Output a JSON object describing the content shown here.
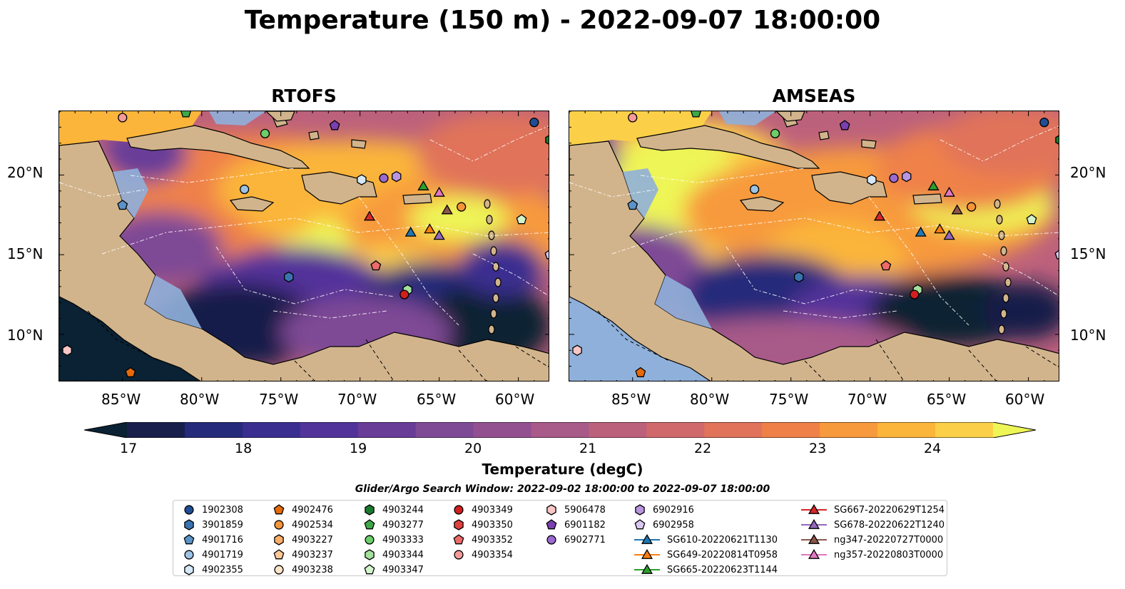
{
  "title": "Temperature (150 m) - 2022-09-07 18:00:00",
  "panels": [
    {
      "title": "RTOFS"
    },
    {
      "title": "AMSEAS"
    }
  ],
  "axes": {
    "lat_ticks": [
      "20°N",
      "15°N",
      "10°N"
    ],
    "lon_ticks": [
      "85°W",
      "80°W",
      "75°W",
      "70°W",
      "65°W",
      "60°W"
    ]
  },
  "colorbar": {
    "label": "Temperature (degC)",
    "ticks": [
      "17",
      "18",
      "19",
      "20",
      "21",
      "22",
      "23",
      "24"
    ],
    "range": [
      16.75,
      24.75
    ],
    "extend": "both",
    "colors": [
      "#0a2233",
      "#181f4a",
      "#262a7a",
      "#3a2f90",
      "#52339a",
      "#693c98",
      "#7e4a95",
      "#935091",
      "#a85a88",
      "#bc617c",
      "#d0696b",
      "#e0735a",
      "#ef8148",
      "#f79a3d",
      "#fbb53b",
      "#fbd048",
      "#eef556"
    ]
  },
  "search_window": "Glider/Argo Search Window: 2022-09-02 18:00:00 to 2022-09-07 18:00:00",
  "legend": [
    {
      "label": "1902308",
      "marker": "circle",
      "color": "#1f4e96"
    },
    {
      "label": "3901859",
      "marker": "hexagon",
      "color": "#3a74b0"
    },
    {
      "label": "4901716",
      "marker": "pentagon",
      "color": "#5b93c9"
    },
    {
      "label": "4901719",
      "marker": "circle",
      "color": "#9cc3e3"
    },
    {
      "label": "4902355",
      "marker": "hexagon",
      "color": "#d4e8f7"
    },
    {
      "label": "4902476",
      "marker": "pentagon",
      "color": "#e66a0a"
    },
    {
      "label": "4902534",
      "marker": "circle",
      "color": "#f89438"
    },
    {
      "label": "4903227",
      "marker": "hexagon",
      "color": "#f9ae68"
    },
    {
      "label": "4903237",
      "marker": "pentagon",
      "color": "#fbc894"
    },
    {
      "label": "4903238",
      "marker": "circle",
      "color": "#fde3c7"
    },
    {
      "label": "4903244",
      "marker": "hexagon",
      "color": "#1c7a2f"
    },
    {
      "label": "4903277",
      "marker": "pentagon",
      "color": "#3ea84a"
    },
    {
      "label": "4903333",
      "marker": "circle",
      "color": "#6ccd6a"
    },
    {
      "label": "4903344",
      "marker": "hexagon",
      "color": "#a3e19c"
    },
    {
      "label": "4903347",
      "marker": "pentagon",
      "color": "#d2f3cc"
    },
    {
      "label": "4903349",
      "marker": "circle",
      "color": "#d21f1f"
    },
    {
      "label": "4903350",
      "marker": "hexagon",
      "color": "#e04040"
    },
    {
      "label": "4903352",
      "marker": "pentagon",
      "color": "#ec6a6a"
    },
    {
      "label": "4903354",
      "marker": "circle",
      "color": "#f49a9a"
    },
    {
      "label": "5906478",
      "marker": "hexagon",
      "color": "#f9c6c6"
    },
    {
      "label": "6901182",
      "marker": "pentagon",
      "color": "#7a3fb0"
    },
    {
      "label": "6902771",
      "marker": "circle",
      "color": "#9a6ad0"
    },
    {
      "label": "6902916",
      "marker": "hexagon",
      "color": "#b895df"
    },
    {
      "label": "6902958",
      "marker": "pentagon",
      "color": "#dcc7f2"
    },
    {
      "label": "SG610-20220621T1130",
      "marker": "triangle",
      "color": "#1f77b4"
    },
    {
      "label": "SG649-20220814T0958",
      "marker": "triangle",
      "color": "#ff7f0e"
    },
    {
      "label": "SG665-20220623T1144",
      "marker": "triangle",
      "color": "#2ca02c"
    },
    {
      "label": "SG667-20220629T1254",
      "marker": "triangle",
      "color": "#d62728"
    },
    {
      "label": "SG678-20220622T1240",
      "marker": "triangle",
      "color": "#9467bd"
    },
    {
      "label": "ng347-20220727T0000",
      "marker": "triangle",
      "color": "#8c564b"
    },
    {
      "label": "ng357-20220803T0000",
      "marker": "triangle",
      "color": "#e377c2"
    }
  ],
  "observations": [
    {
      "id": "1902308",
      "lon": -59.0,
      "lat": 23.3
    },
    {
      "id": "3901859",
      "lon": -74.5,
      "lat": 13.6
    },
    {
      "id": "4901716",
      "lon": -85.0,
      "lat": 18.1
    },
    {
      "id": "4901719",
      "lon": -77.3,
      "lat": 19.1
    },
    {
      "id": "4902355",
      "lon": -69.9,
      "lat": 19.7
    },
    {
      "id": "4902476",
      "lon": -84.5,
      "lat": 7.6
    },
    {
      "id": "4902534",
      "lon": -63.6,
      "lat": 18.0
    },
    {
      "id": "4903244",
      "lon": -58.0,
      "lat": 22.2
    },
    {
      "id": "4903277",
      "lon": -81.0,
      "lat": 23.9
    },
    {
      "id": "4903333",
      "lon": -76.0,
      "lat": 22.6
    },
    {
      "id": "4903344",
      "lon": -67.0,
      "lat": 12.8
    },
    {
      "id": "4903347",
      "lon": -59.8,
      "lat": 17.2
    },
    {
      "id": "4903349",
      "lon": -67.2,
      "lat": 12.5
    },
    {
      "id": "4903352",
      "lon": -69.0,
      "lat": 14.3
    },
    {
      "id": "4903354",
      "lon": -85.0,
      "lat": 23.6
    },
    {
      "id": "5906478",
      "lon": -88.5,
      "lat": 9.0
    },
    {
      "id": "6901182",
      "lon": -71.6,
      "lat": 23.1
    },
    {
      "id": "6902771",
      "lon": -68.5,
      "lat": 19.8
    },
    {
      "id": "6902916",
      "lon": -67.7,
      "lat": 19.9
    },
    {
      "id": "6902958",
      "lon": -58.0,
      "lat": 15.0
    },
    {
      "id": "SG610-20220621T1130",
      "lon": -66.8,
      "lat": 16.4
    },
    {
      "id": "SG649-20220814T0958",
      "lon": -65.6,
      "lat": 16.6
    },
    {
      "id": "SG665-20220623T1144",
      "lon": -66.0,
      "lat": 19.3
    },
    {
      "id": "SG667-20220629T1254",
      "lon": -69.4,
      "lat": 17.4
    },
    {
      "id": "SG678-20220622T1240",
      "lon": -65.0,
      "lat": 16.2
    },
    {
      "id": "ng347-20220727T0000",
      "lon": -64.5,
      "lat": 17.8
    },
    {
      "id": "ng357-20220803T0000",
      "lon": -65.0,
      "lat": 18.9
    }
  ]
}
